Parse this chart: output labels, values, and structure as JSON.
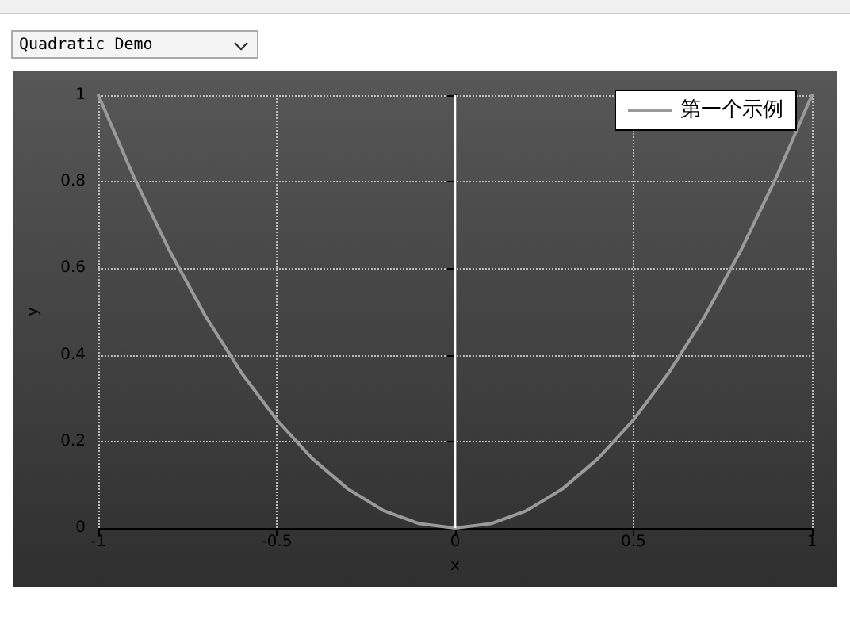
{
  "chart_data": {
    "type": "line",
    "xlabel": "x",
    "ylabel": "y",
    "annotations": [
      "Quadratic Demo"
    ],
    "x": [
      -1,
      -0.9,
      -0.8,
      -0.7,
      -0.6,
      -0.5,
      -0.4,
      -0.3,
      -0.2,
      -0.1,
      0,
      0.1,
      0.2,
      0.3,
      0.4,
      0.5,
      0.6,
      0.7,
      0.8,
      0.9,
      1
    ],
    "series": [
      {
        "name": "第一个示例",
        "color": "#9a9a9a",
        "values": [
          1,
          0.81,
          0.64,
          0.49,
          0.36,
          0.25,
          0.16,
          0.09,
          0.04,
          0.01,
          0,
          0.01,
          0.04,
          0.09,
          0.16,
          0.25,
          0.36,
          0.49,
          0.64,
          0.81,
          1
        ]
      }
    ],
    "xlim": [
      -1,
      1
    ],
    "ylim": [
      0,
      1
    ],
    "xticks": [
      -1,
      -0.5,
      0,
      0.5,
      1
    ],
    "yticks": [
      0,
      0.2,
      0.4,
      0.6,
      0.8,
      1
    ],
    "ref_lines": [
      {
        "axis": "x",
        "value": 0,
        "color": "#ffffff"
      }
    ],
    "grid": true,
    "legend": "top right",
    "marker": "none",
    "line_style": "solid"
  }
}
